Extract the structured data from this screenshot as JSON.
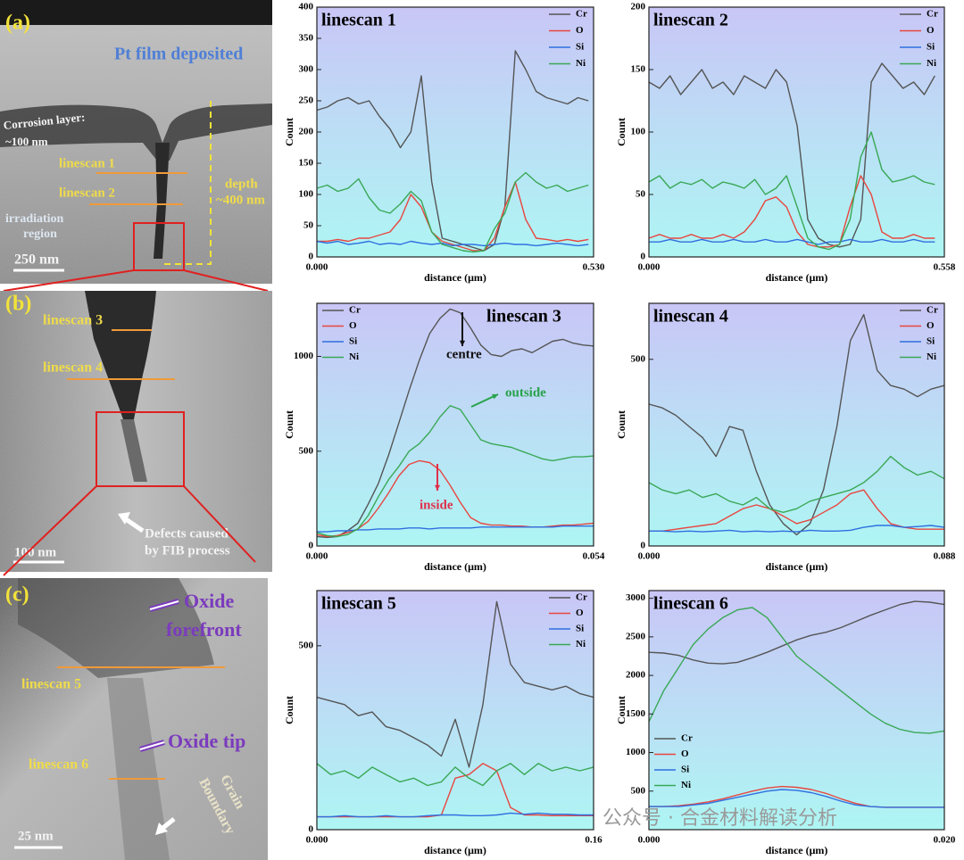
{
  "panel_a": {
    "label": "(a)",
    "film": "Pt film deposited",
    "corrosion": "Corrosion layer:",
    "corrosion_depth": "~100 nm",
    "linescan_1": "linescan 1",
    "linescan_2": "linescan 2",
    "depth": "depth",
    "depth_value": "~400 nm",
    "region_1": "irradiation",
    "region_2": "region",
    "scale": "250 nm"
  },
  "panel_b": {
    "label": "(b)",
    "linescan_3": "linescan 3",
    "linescan_4": "linescan 4",
    "defects_1": "Defects caused",
    "defects_2": "by FIB process",
    "scale": "100 nm"
  },
  "panel_c": {
    "label": "(c)",
    "oxide_1": "Oxide",
    "oxide_2": "forefront",
    "linescan_5": "linescan 5",
    "oxide_tip": "Oxide tip",
    "linescan_6": "linescan 6",
    "grain_1": "Grain",
    "grain_2": "Boundary",
    "scale": "25 nm"
  },
  "watermark": "公众号 · 合金材料解读分析",
  "chart_data": [
    {
      "type": "line",
      "title": "linescan 1",
      "x_label": "distance (μm)",
      "y_label": "Count",
      "legend": "upper right",
      "x": [
        0,
        0.02,
        0.04,
        0.06,
        0.08,
        0.1,
        0.12,
        0.14,
        0.16,
        0.18,
        0.2,
        0.22,
        0.24,
        0.26,
        0.28,
        0.3,
        0.32,
        0.34,
        0.36,
        0.38,
        0.4,
        0.42,
        0.44,
        0.46,
        0.48,
        0.5,
        0.52
      ],
      "series": [
        {
          "name": "Cr",
          "color": "#555555",
          "values": [
            235,
            240,
            250,
            255,
            245,
            250,
            225,
            205,
            175,
            200,
            290,
            120,
            30,
            25,
            20,
            15,
            10,
            20,
            80,
            330,
            300,
            265,
            255,
            250,
            245,
            255,
            250
          ]
        },
        {
          "name": "O",
          "color": "#e8463f",
          "values": [
            25,
            25,
            28,
            25,
            30,
            30,
            35,
            40,
            60,
            100,
            80,
            40,
            25,
            20,
            15,
            10,
            10,
            30,
            80,
            120,
            60,
            30,
            28,
            25,
            28,
            25,
            28
          ]
        },
        {
          "name": "Si",
          "color": "#2f6fe0",
          "values": [
            25,
            22,
            25,
            20,
            22,
            25,
            20,
            22,
            20,
            25,
            22,
            20,
            22,
            18,
            20,
            20,
            18,
            20,
            22,
            20,
            20,
            18,
            20,
            22,
            20,
            18,
            20
          ]
        },
        {
          "name": "Ni",
          "color": "#3aa856",
          "values": [
            110,
            115,
            105,
            110,
            125,
            95,
            75,
            70,
            85,
            105,
            90,
            40,
            20,
            15,
            10,
            8,
            10,
            45,
            70,
            120,
            135,
            120,
            110,
            115,
            105,
            110,
            115
          ]
        }
      ],
      "xlim": [
        0,
        0.53
      ],
      "xticks": [
        {
          "value": 0,
          "label": "0.000"
        },
        {
          "value": 0.53,
          "label": "0.530"
        }
      ],
      "ylim": [
        0,
        400
      ],
      "yticks": [
        0,
        50,
        100,
        150,
        200,
        250,
        300,
        350,
        400
      ]
    },
    {
      "type": "line",
      "title": "linescan 2",
      "x_label": "distance (μm)",
      "y_label": "Count",
      "legend": "upper right",
      "x": [
        0,
        0.02,
        0.04,
        0.06,
        0.08,
        0.1,
        0.12,
        0.14,
        0.16,
        0.18,
        0.2,
        0.22,
        0.24,
        0.26,
        0.28,
        0.3,
        0.32,
        0.34,
        0.36,
        0.38,
        0.4,
        0.42,
        0.44,
        0.46,
        0.48,
        0.5,
        0.52,
        0.54
      ],
      "series": [
        {
          "name": "Cr",
          "color": "#555555",
          "values": [
            140,
            135,
            145,
            130,
            140,
            150,
            135,
            140,
            130,
            145,
            140,
            135,
            150,
            140,
            105,
            30,
            15,
            10,
            8,
            10,
            30,
            140,
            155,
            145,
            135,
            140,
            130,
            145
          ]
        },
        {
          "name": "O",
          "color": "#e8463f",
          "values": [
            15,
            18,
            15,
            15,
            18,
            15,
            15,
            18,
            15,
            20,
            30,
            45,
            48,
            40,
            20,
            10,
            8,
            8,
            10,
            40,
            65,
            50,
            20,
            15,
            15,
            18,
            15,
            15
          ]
        },
        {
          "name": "Si",
          "color": "#2f6fe0",
          "values": [
            12,
            12,
            14,
            12,
            12,
            14,
            12,
            12,
            14,
            12,
            12,
            14,
            12,
            12,
            14,
            12,
            10,
            12,
            12,
            14,
            12,
            12,
            14,
            12,
            12,
            14,
            12,
            12
          ]
        },
        {
          "name": "Ni",
          "color": "#3aa856",
          "values": [
            60,
            65,
            55,
            60,
            58,
            62,
            55,
            60,
            58,
            55,
            62,
            50,
            55,
            65,
            40,
            15,
            8,
            6,
            10,
            30,
            80,
            100,
            70,
            60,
            62,
            65,
            60,
            58
          ]
        }
      ],
      "xlim": [
        0,
        0.558
      ],
      "xticks": [
        {
          "value": 0,
          "label": "0.000"
        },
        0.558
      ],
      "ylim": [
        0,
        200
      ],
      "yticks": [
        0,
        50,
        100,
        150,
        200
      ]
    },
    {
      "type": "line",
      "title": "linescan 3",
      "x_label": "distance (μm)",
      "y_label": "Count",
      "legend": "upper left",
      "annotations": [
        "centre",
        "outside",
        "inside"
      ],
      "x": [
        0,
        0.002,
        0.004,
        0.006,
        0.008,
        0.01,
        0.012,
        0.014,
        0.016,
        0.018,
        0.02,
        0.022,
        0.024,
        0.026,
        0.028,
        0.03,
        0.032,
        0.034,
        0.036,
        0.038,
        0.04,
        0.042,
        0.044,
        0.046,
        0.048,
        0.05,
        0.052,
        0.054
      ],
      "series": [
        {
          "name": "Cr",
          "color": "#555555",
          "values": [
            50,
            45,
            50,
            80,
            120,
            220,
            330,
            480,
            650,
            820,
            980,
            1120,
            1200,
            1250,
            1230,
            1150,
            1060,
            1010,
            1000,
            1030,
            1040,
            1020,
            1050,
            1080,
            1090,
            1070,
            1060,
            1055
          ]
        },
        {
          "name": "O",
          "color": "#e8463f",
          "values": [
            60,
            50,
            55,
            70,
            90,
            130,
            200,
            280,
            370,
            430,
            450,
            440,
            400,
            320,
            230,
            150,
            120,
            110,
            110,
            105,
            105,
            100,
            100,
            105,
            110,
            110,
            115,
            120
          ]
        },
        {
          "name": "Si",
          "color": "#2f6fe0",
          "values": [
            75,
            75,
            80,
            80,
            85,
            85,
            90,
            90,
            90,
            95,
            95,
            90,
            95,
            95,
            95,
            95,
            100,
            100,
            100,
            100,
            100,
            100,
            100,
            100,
            105,
            105,
            105,
            105
          ]
        },
        {
          "name": "Ni",
          "color": "#3aa856",
          "values": [
            70,
            55,
            50,
            60,
            90,
            160,
            260,
            350,
            420,
            500,
            540,
            600,
            680,
            740,
            720,
            640,
            560,
            540,
            530,
            520,
            500,
            480,
            460,
            450,
            460,
            470,
            470,
            475
          ]
        }
      ],
      "xlim": [
        0,
        0.054
      ],
      "xticks": [
        {
          "value": 0,
          "label": "0.000"
        },
        0.054
      ],
      "ylim": [
        0,
        1280
      ],
      "yticks": [
        0,
        500,
        1000
      ]
    },
    {
      "type": "line",
      "title": "linescan 4",
      "x_label": "distance (μm)",
      "y_label": "Count",
      "legend": "upper right",
      "x": [
        0,
        0.004,
        0.008,
        0.012,
        0.016,
        0.02,
        0.024,
        0.028,
        0.032,
        0.036,
        0.04,
        0.044,
        0.048,
        0.052,
        0.056,
        0.06,
        0.064,
        0.068,
        0.072,
        0.076,
        0.08,
        0.084,
        0.088
      ],
      "series": [
        {
          "name": "Cr",
          "color": "#555555",
          "values": [
            380,
            370,
            350,
            320,
            290,
            240,
            320,
            310,
            200,
            110,
            60,
            30,
            60,
            150,
            320,
            550,
            620,
            470,
            430,
            420,
            400,
            420,
            430
          ]
        },
        {
          "name": "O",
          "color": "#e8463f",
          "values": [
            40,
            40,
            45,
            50,
            55,
            60,
            80,
            100,
            110,
            100,
            80,
            60,
            70,
            90,
            110,
            140,
            150,
            100,
            60,
            50,
            45,
            45,
            45
          ]
        },
        {
          "name": "Si",
          "color": "#2f6fe0",
          "values": [
            40,
            40,
            38,
            40,
            38,
            40,
            42,
            38,
            40,
            38,
            40,
            38,
            42,
            40,
            40,
            42,
            50,
            55,
            55,
            50,
            52,
            55,
            50
          ]
        },
        {
          "name": "Ni",
          "color": "#3aa856",
          "values": [
            170,
            150,
            140,
            150,
            130,
            140,
            120,
            110,
            130,
            100,
            90,
            100,
            120,
            130,
            140,
            150,
            170,
            200,
            240,
            210,
            190,
            200,
            180
          ]
        }
      ],
      "xlim": [
        0,
        0.088
      ],
      "xticks": [
        {
          "value": 0,
          "label": "0.000"
        },
        0.088
      ],
      "ylim": [
        0,
        650
      ],
      "yticks": [
        0,
        500
      ]
    },
    {
      "type": "line",
      "title": "linescan 5",
      "x_label": "distance (μm)",
      "y_label": "Count",
      "legend": "upper right",
      "x": [
        0,
        0.008,
        0.016,
        0.024,
        0.032,
        0.04,
        0.048,
        0.056,
        0.064,
        0.072,
        0.08,
        0.088,
        0.096,
        0.104,
        0.112,
        0.12,
        0.128,
        0.136,
        0.144,
        0.152,
        0.16
      ],
      "series": [
        {
          "name": "Cr",
          "color": "#555555",
          "values": [
            360,
            350,
            340,
            310,
            320,
            280,
            270,
            250,
            230,
            200,
            300,
            170,
            340,
            620,
            450,
            400,
            390,
            380,
            390,
            370,
            360
          ]
        },
        {
          "name": "O",
          "color": "#e8463f",
          "values": [
            35,
            35,
            35,
            35,
            35,
            35,
            35,
            35,
            35,
            40,
            140,
            150,
            180,
            160,
            60,
            40,
            40,
            38,
            38,
            38,
            38
          ]
        },
        {
          "name": "Si",
          "color": "#2f6fe0",
          "values": [
            35,
            35,
            38,
            35,
            35,
            38,
            35,
            35,
            38,
            40,
            40,
            38,
            38,
            40,
            45,
            42,
            45,
            42,
            42,
            40,
            40
          ]
        },
        {
          "name": "Ni",
          "color": "#3aa856",
          "values": [
            180,
            150,
            160,
            140,
            170,
            150,
            130,
            140,
            120,
            130,
            170,
            140,
            120,
            160,
            180,
            150,
            180,
            160,
            170,
            160,
            170
          ]
        }
      ],
      "xlim": [
        0,
        0.16
      ],
      "xticks": [
        {
          "value": 0,
          "label": "0.000"
        },
        0.16
      ],
      "ylim": [
        0,
        650
      ],
      "yticks": [
        0,
        500
      ]
    },
    {
      "type": "line",
      "title": "linescan 6",
      "x_label": "distance (μm)",
      "y_label": "Count",
      "legend": "lower left",
      "x": [
        0,
        0.001,
        0.002,
        0.003,
        0.004,
        0.005,
        0.006,
        0.007,
        0.008,
        0.009,
        0.01,
        0.011,
        0.012,
        0.013,
        0.014,
        0.015,
        0.016,
        0.017,
        0.018,
        0.019,
        0.02
      ],
      "series": [
        {
          "name": "Cr",
          "color": "#555555",
          "values": [
            2300,
            2290,
            2260,
            2200,
            2160,
            2150,
            2170,
            2230,
            2300,
            2380,
            2460,
            2520,
            2560,
            2620,
            2700,
            2780,
            2850,
            2920,
            2960,
            2950,
            2920
          ]
        },
        {
          "name": "O",
          "color": "#e8463f",
          "values": [
            300,
            300,
            310,
            330,
            360,
            400,
            450,
            500,
            540,
            560,
            550,
            520,
            470,
            400,
            340,
            300,
            290,
            290,
            290,
            290,
            290
          ]
        },
        {
          "name": "Si",
          "color": "#2f6fe0",
          "values": [
            300,
            300,
            300,
            320,
            340,
            380,
            420,
            460,
            500,
            520,
            510,
            480,
            430,
            370,
            320,
            300,
            290,
            290,
            290,
            290,
            290
          ]
        },
        {
          "name": "Ni",
          "color": "#3aa856",
          "values": [
            1400,
            1800,
            2100,
            2400,
            2600,
            2750,
            2850,
            2880,
            2750,
            2500,
            2250,
            2100,
            1950,
            1800,
            1650,
            1500,
            1380,
            1300,
            1260,
            1250,
            1280
          ]
        }
      ],
      "xlim": [
        0,
        0.02
      ],
      "xticks": [
        {
          "value": 0,
          "label": "0.000"
        },
        {
          "value": 0.02,
          "label": "0.020"
        }
      ],
      "ylim": [
        0,
        3100
      ],
      "yticks": [
        500,
        1000,
        1500,
        2000,
        2500,
        3000
      ]
    }
  ]
}
